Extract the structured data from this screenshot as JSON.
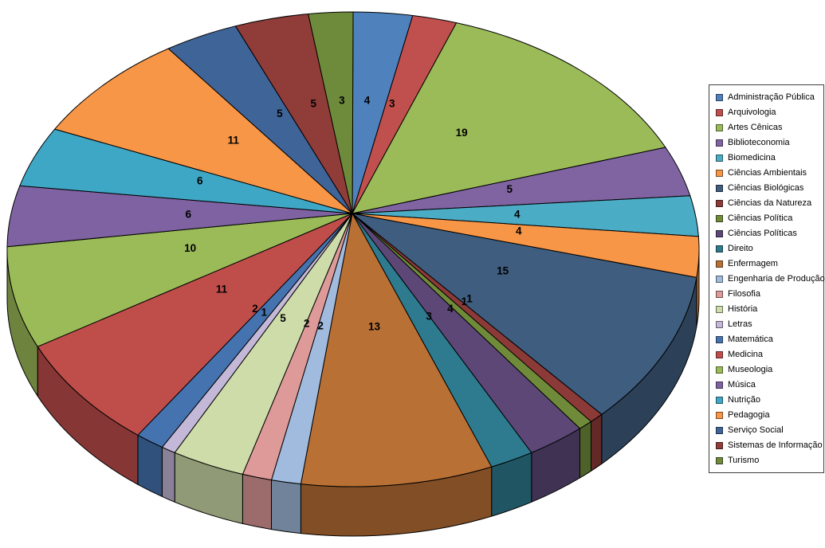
{
  "page": {
    "background": "#FFFFFF"
  },
  "chart_data": {
    "type": "pie",
    "style": "3d",
    "title": "",
    "grid": false,
    "legend_position": "right",
    "data_label_mode": "value",
    "total": 145,
    "categories": [
      "Administração Pública",
      "Arquivologia",
      "Artes Cênicas",
      "Biblioteconomia",
      "Biomedicina",
      "Ciências Ambientais",
      "Ciências Biológicas",
      "Ciências da Natureza",
      "Ciências Política",
      "Ciências Políticas",
      "Direito",
      "Enfermagem",
      "Engenharia de Produção",
      "Filosofia",
      "História",
      "Letras",
      "Matemática",
      "Medicina",
      "Museologia",
      "Música",
      "Nutrição",
      "Pedagogia",
      "Serviço Social",
      "Sistemas de Informação",
      "Turismo"
    ],
    "values": [
      4,
      3,
      19,
      5,
      4,
      4,
      15,
      1,
      1,
      4,
      3,
      13,
      2,
      2,
      5,
      1,
      2,
      11,
      10,
      6,
      6,
      11,
      5,
      5,
      3
    ],
    "colors": [
      "#4F81BD",
      "#C0504D",
      "#9BBB59",
      "#8064A2",
      "#4BACC6",
      "#F79646",
      "#3F5D7E",
      "#8C3A37",
      "#6F8B3A",
      "#5C4776",
      "#2E7B8F",
      "#B97035",
      "#A0BBDE",
      "#DD9A99",
      "#CDDCA9",
      "#C4B8D8",
      "#4573B0",
      "#BF4E4B",
      "#9BBB59",
      "#7E62A1",
      "#3FA7C6",
      "#F79646",
      "#3F6498",
      "#903C39",
      "#6E8B3C"
    ],
    "legend_border_color": "#3F3F3F",
    "label_color": "#000000"
  }
}
